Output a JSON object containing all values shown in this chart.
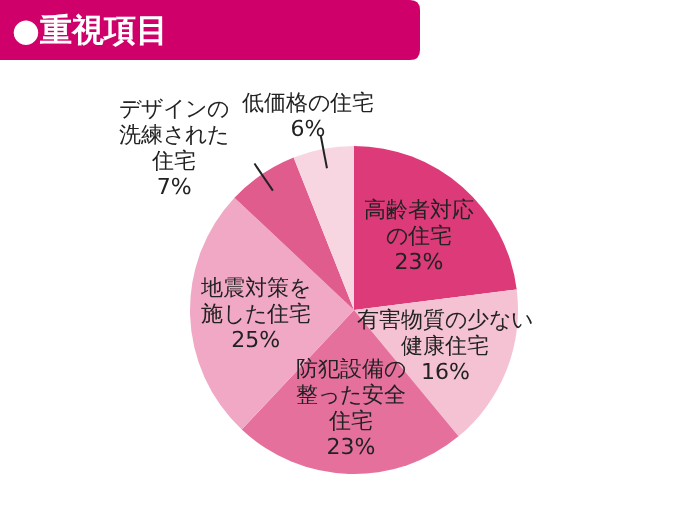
{
  "chart_data": {
    "type": "pie",
    "title": "●重視項目",
    "categories": [
      "高齢者対応の住宅",
      "有害物質の少ない健康住宅",
      "防犯設備の整った安全住宅",
      "地震対策を施した住宅",
      "デザインの洗練された住宅",
      "低価格の住宅"
    ],
    "values": [
      23,
      16,
      23,
      25,
      7,
      6
    ],
    "value_labels": [
      "23%",
      "16%",
      "23%",
      "25%",
      "7%",
      "6%"
    ],
    "colors": [
      "#dc3a78",
      "#f5c2d4",
      "#e6709c",
      "#f0a8c4",
      "#e05c8c",
      "#f7d6e2"
    ],
    "legend": false
  }
}
